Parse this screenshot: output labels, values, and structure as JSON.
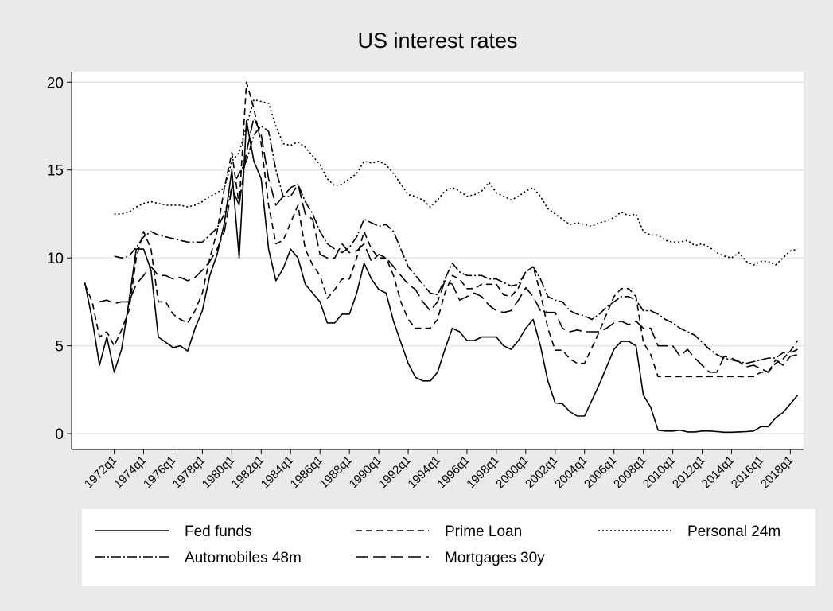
{
  "chart_data": {
    "type": "line",
    "title": "US interest rates",
    "x": [
      1970,
      1970.5,
      1971,
      1971.5,
      1972,
      1972.5,
      1973,
      1973.5,
      1974,
      1974.5,
      1975,
      1975.5,
      1976,
      1976.5,
      1977,
      1977.5,
      1978,
      1978.5,
      1979,
      1979.5,
      1980,
      1980.5,
      1981,
      1981.5,
      1982,
      1982.5,
      1983,
      1983.5,
      1984,
      1984.5,
      1985,
      1985.5,
      1986,
      1986.5,
      1987,
      1987.5,
      1988,
      1988.5,
      1989,
      1989.5,
      1990,
      1990.5,
      1991,
      1991.5,
      1992,
      1992.5,
      1993,
      1993.5,
      1994,
      1994.5,
      1995,
      1995.5,
      1996,
      1996.5,
      1997,
      1997.5,
      1998,
      1998.5,
      1999,
      1999.5,
      2000,
      2000.5,
      2001,
      2001.5,
      2002,
      2002.5,
      2003,
      2003.5,
      2004,
      2004.5,
      2005,
      2005.5,
      2006,
      2006.5,
      2007,
      2007.5,
      2008,
      2008.5,
      2009,
      2009.5,
      2010,
      2010.5,
      2011,
      2011.5,
      2012,
      2012.5,
      2013,
      2013.5,
      2014,
      2014.5,
      2015,
      2015.5,
      2016,
      2016.5,
      2017,
      2017.5,
      2018,
      2018.5
    ],
    "series": [
      {
        "name": "Fed funds",
        "color": "#000000",
        "dash": "none",
        "values": [
          8.6,
          6.5,
          3.9,
          5.5,
          3.5,
          4.8,
          7.5,
          10.5,
          10.5,
          9.3,
          5.5,
          5.2,
          4.9,
          5.0,
          4.7,
          6.0,
          7.0,
          9.0,
          10.2,
          12.0,
          15.0,
          10.0,
          17.8,
          15.5,
          14.5,
          10.5,
          8.7,
          9.4,
          10.5,
          10.0,
          8.5,
          8.0,
          7.5,
          6.3,
          6.3,
          6.8,
          6.8,
          8.0,
          9.7,
          8.8,
          8.2,
          8.0,
          6.4,
          5.2,
          4.0,
          3.2,
          3.0,
          3.0,
          3.5,
          4.8,
          6.0,
          5.8,
          5.3,
          5.3,
          5.5,
          5.5,
          5.5,
          5.0,
          4.8,
          5.3,
          6.0,
          6.5,
          5.0,
          3.0,
          1.75,
          1.7,
          1.25,
          1.0,
          1.0,
          1.9,
          2.8,
          3.8,
          4.8,
          5.25,
          5.25,
          5.0,
          2.2,
          1.5,
          0.2,
          0.15,
          0.15,
          0.2,
          0.1,
          0.1,
          0.15,
          0.15,
          0.12,
          0.08,
          0.08,
          0.1,
          0.12,
          0.15,
          0.4,
          0.4,
          0.9,
          1.2,
          1.7,
          2.2
        ]
      },
      {
        "name": "Prime Loan",
        "color": "#000000",
        "dash": "8 5",
        "values": [
          8.5,
          7.5,
          5.5,
          5.8,
          5.0,
          5.9,
          7.0,
          10.0,
          11.5,
          10.5,
          7.5,
          7.5,
          6.8,
          6.5,
          6.3,
          7.0,
          8.0,
          10.0,
          11.5,
          14.0,
          16.0,
          13.0,
          20.0,
          18.5,
          16.5,
          13.0,
          10.8,
          11.0,
          12.0,
          13.0,
          10.5,
          9.6,
          9.0,
          7.7,
          8.2,
          8.8,
          8.8,
          10.0,
          11.5,
          10.5,
          10.0,
          10.0,
          9.0,
          7.5,
          6.5,
          6.0,
          6.0,
          6.0,
          6.5,
          8.0,
          9.0,
          8.8,
          8.25,
          8.25,
          8.5,
          8.5,
          8.5,
          7.9,
          7.8,
          8.3,
          9.2,
          9.5,
          8.0,
          6.0,
          4.75,
          4.75,
          4.25,
          4.0,
          4.0,
          4.9,
          5.8,
          6.8,
          7.8,
          8.25,
          8.25,
          7.8,
          5.2,
          4.5,
          3.25,
          3.25,
          3.25,
          3.25,
          3.25,
          3.25,
          3.25,
          3.25,
          3.25,
          3.25,
          3.25,
          3.25,
          3.25,
          3.25,
          3.5,
          3.5,
          4.0,
          4.25,
          4.7,
          5.3
        ]
      },
      {
        "name": "Personal 24m",
        "color": "#000000",
        "dash": "2 3",
        "values": [
          null,
          null,
          null,
          null,
          12.5,
          12.5,
          12.6,
          12.9,
          13.1,
          13.2,
          13.1,
          13.0,
          13.0,
          13.0,
          12.9,
          13.0,
          13.2,
          13.5,
          13.7,
          14.0,
          15.5,
          16.0,
          17.5,
          19.0,
          18.9,
          18.8,
          17.5,
          16.5,
          16.4,
          16.6,
          16.3,
          15.8,
          15.3,
          14.5,
          14.1,
          14.2,
          14.5,
          14.8,
          15.5,
          15.4,
          15.5,
          15.3,
          14.8,
          14.2,
          13.6,
          13.5,
          13.3,
          12.9,
          13.3,
          13.8,
          14.0,
          13.8,
          13.5,
          13.6,
          13.8,
          14.3,
          13.7,
          13.5,
          13.3,
          13.5,
          13.8,
          14.0,
          13.5,
          12.8,
          12.5,
          12.2,
          11.9,
          12.0,
          11.9,
          11.8,
          12.0,
          12.1,
          12.3,
          12.6,
          12.4,
          12.5,
          11.5,
          11.3,
          11.3,
          11.0,
          10.9,
          10.9,
          11.0,
          10.7,
          10.8,
          10.6,
          10.3,
          10.1,
          10.0,
          10.3,
          9.8,
          9.6,
          9.8,
          9.8,
          9.6,
          10.0,
          10.4,
          10.5
        ]
      },
      {
        "name": "Automobiles 48m",
        "color": "#000000",
        "dash": "12 3 2 3",
        "values": [
          null,
          null,
          null,
          null,
          10.1,
          10.0,
          10.1,
          10.6,
          11.2,
          11.5,
          11.3,
          11.2,
          11.1,
          11.0,
          10.9,
          10.9,
          10.9,
          11.3,
          11.7,
          12.5,
          14.0,
          14.8,
          15.5,
          17.0,
          17.5,
          17.2,
          15.0,
          13.5,
          13.5,
          14.2,
          13.2,
          12.5,
          11.5,
          10.8,
          10.5,
          10.3,
          10.6,
          11.2,
          12.2,
          12.0,
          11.8,
          11.9,
          11.5,
          10.5,
          9.5,
          9.0,
          8.5,
          8.0,
          7.9,
          8.8,
          9.7,
          9.2,
          9.0,
          9.0,
          9.0,
          8.8,
          8.8,
          8.6,
          8.4,
          8.5,
          9.2,
          9.5,
          8.8,
          7.8,
          7.6,
          7.5,
          7.0,
          6.8,
          6.7,
          6.5,
          6.8,
          7.2,
          7.5,
          7.8,
          7.8,
          7.6,
          7.0,
          7.0,
          6.8,
          6.5,
          6.3,
          6.0,
          5.8,
          5.6,
          5.2,
          4.8,
          4.5,
          4.3,
          4.2,
          4.1,
          4.0,
          4.1,
          4.2,
          4.3,
          4.3,
          4.6,
          4.6,
          4.8
        ]
      },
      {
        "name": "Mortgages 30y",
        "color": "#000000",
        "dash": "16 6",
        "values": [
          null,
          null,
          7.5,
          7.6,
          7.4,
          7.5,
          7.5,
          8.5,
          9.0,
          9.5,
          9.0,
          9.0,
          8.8,
          8.9,
          8.7,
          8.9,
          9.3,
          9.8,
          10.5,
          11.5,
          14.0,
          13.0,
          16.0,
          18.0,
          17.0,
          14.5,
          13.0,
          13.5,
          14.0,
          14.2,
          12.5,
          12.2,
          10.2,
          10.0,
          10.0,
          10.8,
          10.3,
          10.4,
          10.8,
          9.8,
          10.2,
          10.0,
          9.5,
          9.0,
          8.5,
          8.2,
          7.5,
          7.0,
          7.5,
          8.7,
          8.5,
          7.6,
          7.8,
          8.0,
          7.8,
          7.3,
          7.0,
          6.9,
          7.0,
          7.6,
          8.3,
          7.8,
          7.0,
          6.9,
          6.9,
          6.0,
          5.8,
          5.9,
          5.8,
          5.8,
          5.8,
          6.0,
          6.3,
          6.4,
          6.2,
          6.4,
          6.0,
          6.0,
          5.0,
          5.0,
          5.0,
          4.4,
          4.8,
          4.3,
          3.9,
          3.5,
          3.5,
          4.4,
          4.3,
          4.1,
          3.8,
          3.9,
          3.7,
          3.5,
          4.2,
          3.9,
          4.4,
          4.5
        ]
      }
    ],
    "xlim": [
      1969.1,
      2018.9
    ],
    "xticks": [
      {
        "value": 1972,
        "label": "1972q1"
      },
      {
        "value": 1974,
        "label": "1974q1"
      },
      {
        "value": 1976,
        "label": "1976q1"
      },
      {
        "value": 1978,
        "label": "1978q1"
      },
      {
        "value": 1980,
        "label": "1980q1"
      },
      {
        "value": 1982,
        "label": "1982q1"
      },
      {
        "value": 1984,
        "label": "1984q1"
      },
      {
        "value": 1986,
        "label": "1986q1"
      },
      {
        "value": 1988,
        "label": "1988q1"
      },
      {
        "value": 1990,
        "label": "1990q1"
      },
      {
        "value": 1992,
        "label": "1992q1"
      },
      {
        "value": 1994,
        "label": "1994q1"
      },
      {
        "value": 1996,
        "label": "1996q1"
      },
      {
        "value": 1998,
        "label": "1998q1"
      },
      {
        "value": 2000,
        "label": "2000q1"
      },
      {
        "value": 2002,
        "label": "2002q1"
      },
      {
        "value": 2004,
        "label": "2004q1"
      },
      {
        "value": 2006,
        "label": "2006q1"
      },
      {
        "value": 2008,
        "label": "2008q1"
      },
      {
        "value": 2010,
        "label": "2010q1"
      },
      {
        "value": 2012,
        "label": "2012q1"
      },
      {
        "value": 2014,
        "label": "2014q1"
      },
      {
        "value": 2016,
        "label": "2016q1"
      },
      {
        "value": 2018,
        "label": "2018q1"
      }
    ],
    "ylim": [
      -0.9,
      20.6
    ],
    "yticks": [
      0,
      5,
      10,
      15,
      20
    ],
    "grid": true
  }
}
